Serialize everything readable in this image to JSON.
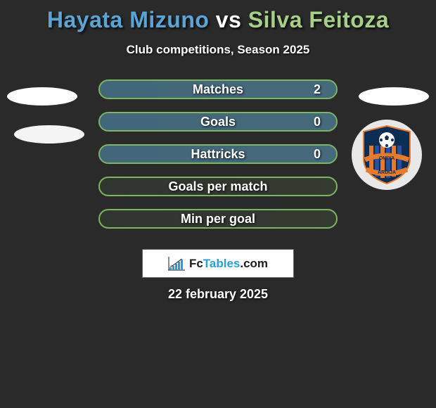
{
  "header": {
    "player1": "Hayata Mizuno",
    "vs": "vs",
    "player2": "Silva Feitoza",
    "subtitle": "Club competitions, Season 2025",
    "player1_color": "#5aa5d6",
    "player2_color": "#a6d088"
  },
  "stats": {
    "pill_border": "#7bb661",
    "pill_fill_left_color": "#5aa5d6",
    "rows": [
      {
        "label": "Matches",
        "value_right": "2",
        "left_fill_pct": 100
      },
      {
        "label": "Goals",
        "value_right": "0",
        "left_fill_pct": 100
      },
      {
        "label": "Hattricks",
        "value_right": "0",
        "left_fill_pct": 100
      },
      {
        "label": "Goals per match",
        "value_right": "",
        "left_fill_pct": 0
      },
      {
        "label": "Min per goal",
        "value_right": "",
        "left_fill_pct": 0
      }
    ]
  },
  "decor": {
    "ellipse_color": "#ffffff"
  },
  "badge": {
    "ring_bg": "#e8e8e8",
    "shield_bg": "#0c2e52",
    "stripes": [
      "#e67a2e",
      "#2a4fa0"
    ],
    "ball_color": "#ffffff",
    "ribbon_text_top": "OMIYA",
    "ribbon_text_bottom": "ARDIJA",
    "ribbon_color": "#e67a2e"
  },
  "watermark": {
    "fc": "Fc",
    "tables": "Tables",
    "dotcom": ".com",
    "bar_color": "#2a9fd6",
    "border_color": "#666666",
    "bars": [
      {
        "x": 2,
        "h": 4
      },
      {
        "x": 6,
        "h": 6
      },
      {
        "x": 10,
        "h": 9
      },
      {
        "x": 14,
        "h": 12
      },
      {
        "x": 18,
        "h": 15
      }
    ]
  },
  "footer": {
    "date": "22 february 2025"
  },
  "colors": {
    "background": "#2a2a2a",
    "text": "#ffffff"
  }
}
